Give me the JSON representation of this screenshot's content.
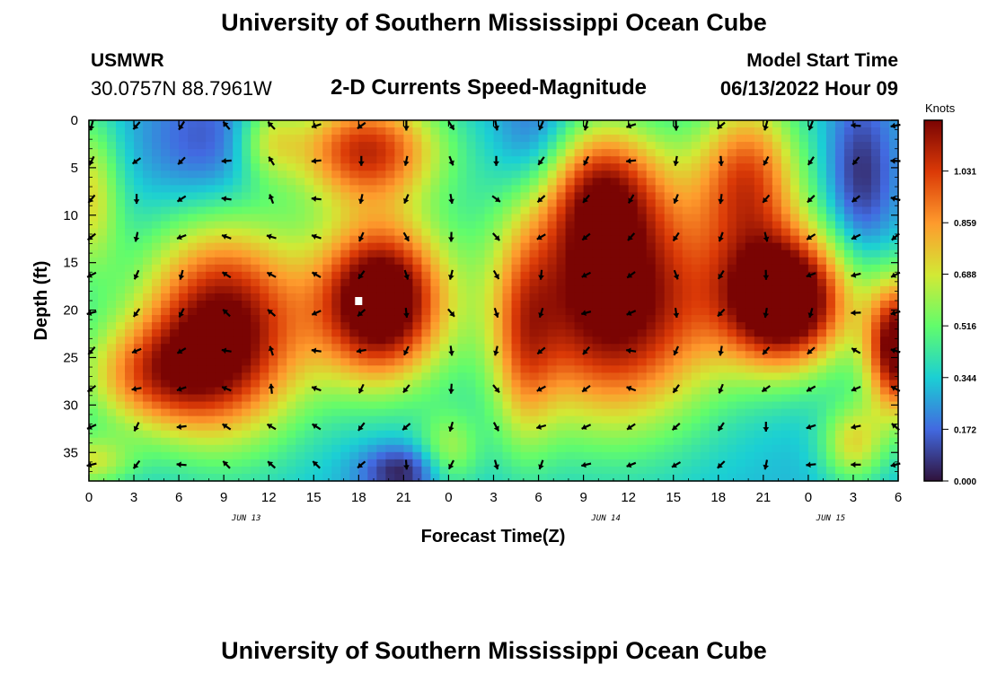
{
  "header": {
    "title": "University of Southern Mississippi Ocean Cube",
    "station": "USMWR",
    "coords": "30.0757N  88.7961W",
    "subtitle": "2-D Currents Speed-Magnitude",
    "model_start_label": "Model Start Time",
    "model_start_value": "06/13/2022 Hour 09"
  },
  "footer": {
    "title": "University of Southern Mississippi Ocean Cube"
  },
  "colors": {
    "low": "#30123b",
    "blue": "#4269e0",
    "cyan": "#1bcfd4",
    "green": "#61fc6c",
    "yellow": "#d2e935",
    "orange": "#fe9b2d",
    "red": "#db3a07",
    "high": "#7a0403"
  },
  "chart_data": {
    "type": "heatmap",
    "title": "2-D Currents Speed-Magnitude",
    "xlabel": "Forecast Time(Z)",
    "ylabel": "Depth (ft)",
    "x_ticks": [
      "0",
      "3",
      "6",
      "9",
      "12",
      "15",
      "18",
      "21",
      "0",
      "3",
      "6",
      "9",
      "12",
      "15",
      "18",
      "21",
      "0",
      "3",
      "6"
    ],
    "x_range_hours": [
      0,
      54
    ],
    "day_labels": [
      {
        "label": "JUN 13",
        "hour": 10.5
      },
      {
        "label": "JUN 14",
        "hour": 34.5
      },
      {
        "label": "JUN 15",
        "hour": 49.5
      }
    ],
    "y_ticks": [
      0,
      5,
      10,
      15,
      20,
      25,
      30,
      35
    ],
    "y_range_ft": [
      0,
      38
    ],
    "colorbar": {
      "title": "Knots",
      "ticks": [
        "1.031",
        "0.859",
        "0.688",
        "0.516",
        "0.344",
        "0.172",
        "0.000"
      ],
      "range": [
        0,
        1.2
      ]
    },
    "speed_blobs_knots": [
      {
        "t": 9,
        "d": 22,
        "amp": 0.95,
        "st": 4,
        "sd": 8
      },
      {
        "t": 4,
        "d": 27,
        "amp": 0.45,
        "st": 3.5,
        "sd": 4
      },
      {
        "t": 19.5,
        "d": 19,
        "amp": 1.1,
        "st": 3,
        "sd": 6
      },
      {
        "t": 18.5,
        "d": 3,
        "amp": 0.75,
        "st": 3.5,
        "sd": 4
      },
      {
        "t": 35,
        "d": 19,
        "amp": 1.0,
        "st": 5,
        "sd": 9
      },
      {
        "t": 34,
        "d": 7,
        "amp": 0.55,
        "st": 3,
        "sd": 5
      },
      {
        "t": 46.5,
        "d": 19,
        "amp": 1.15,
        "st": 3,
        "sd": 5
      },
      {
        "t": 44,
        "d": 6,
        "amp": 0.65,
        "st": 2.5,
        "sd": 6
      },
      {
        "t": 54,
        "d": 24,
        "amp": 1.0,
        "st": 1.5,
        "sd": 5
      },
      {
        "t": 51,
        "d": 34,
        "amp": 0.4,
        "st": 1.5,
        "sd": 3
      },
      {
        "t": 29,
        "d": 24,
        "amp": 0.35,
        "st": 1.5,
        "sd": 8
      },
      {
        "t": 0,
        "d": 8,
        "amp": 0.4,
        "st": 1.5,
        "sd": 6
      },
      {
        "t": 12,
        "d": 2,
        "amp": 0.3,
        "st": 1.5,
        "sd": 3
      },
      {
        "t": 0,
        "d": 36,
        "amp": 0.35,
        "st": 2,
        "sd": 2
      },
      {
        "t": 24,
        "d": 35,
        "amp": 0.3,
        "st": 1.5,
        "sd": 3
      }
    ],
    "speed_background_knots": 0.3,
    "speed_lows_knots": [
      {
        "t": 21,
        "d": 37,
        "amp": 0.3,
        "st": 2,
        "sd": 2
      },
      {
        "t": 8,
        "d": 3,
        "amp": 0.2,
        "st": 3,
        "sd": 5
      },
      {
        "t": 51.5,
        "d": 6,
        "amp": 0.25,
        "st": 1.5,
        "sd": 6
      },
      {
        "t": 30,
        "d": 3,
        "amp": 0.25,
        "st": 2,
        "sd": 5
      }
    ],
    "vector_field": {
      "hours": [
        0,
        3,
        6,
        9,
        12,
        15,
        18,
        21,
        24,
        27,
        30,
        33,
        36,
        39,
        42,
        45,
        48,
        51,
        54
      ],
      "depths_ft": [
        0,
        4,
        8,
        12,
        16,
        20,
        24,
        28,
        32,
        36
      ],
      "dir_deg_by_hour": [
        135,
        120,
        135,
        200,
        220,
        180,
        120,
        90,
        80,
        60,
        120,
        135,
        150,
        100,
        110,
        100,
        130,
        160,
        170
      ],
      "dir_note": "screen angle, 0 = pointing right, 90 = pointing down"
    },
    "marker": {
      "hour": 18,
      "depth_ft": 19
    }
  }
}
